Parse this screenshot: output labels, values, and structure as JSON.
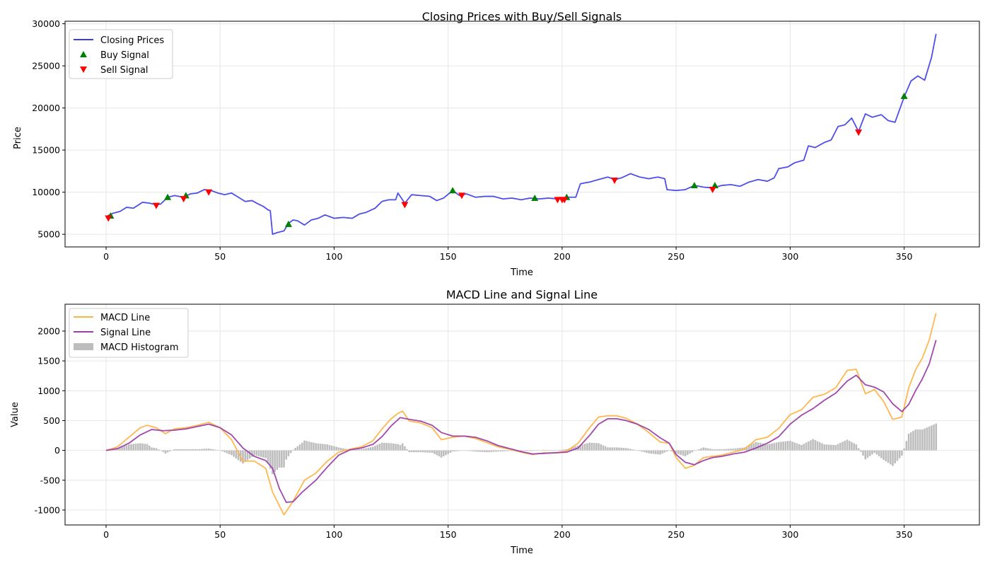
{
  "colors": {
    "price": "#3b3bea",
    "buy": "#008000",
    "sell": "#ff0000",
    "macd": "#ffb347",
    "signal": "#9b3fa8",
    "hist": "#bdbdbd",
    "grid": "#e6e6e6"
  },
  "chart_data": [
    {
      "type": "line",
      "title": "Closing Prices with Buy/Sell Signals",
      "xlabel": "Time",
      "ylabel": "Price",
      "xlim": [
        -18,
        383
      ],
      "ylim": [
        3500,
        30300
      ],
      "xticks": [
        0,
        50,
        100,
        150,
        200,
        250,
        300,
        350
      ],
      "yticks": [
        5000,
        10000,
        15000,
        20000,
        25000,
        30000
      ],
      "grid": true,
      "legend": {
        "position": "top-left",
        "entries": [
          "Closing Prices",
          "Buy Signal",
          "Sell Signal"
        ]
      },
      "price_keypoints": [
        [
          0,
          7100
        ],
        [
          3,
          7500
        ],
        [
          6,
          7700
        ],
        [
          9,
          8200
        ],
        [
          12,
          8100
        ],
        [
          16,
          8800
        ],
        [
          19,
          8700
        ],
        [
          22,
          8500
        ],
        [
          24,
          8600
        ],
        [
          27,
          9400
        ],
        [
          30,
          9600
        ],
        [
          34,
          9400
        ],
        [
          37,
          9800
        ],
        [
          40,
          9900
        ],
        [
          43,
          10300
        ],
        [
          46,
          10200
        ],
        [
          49,
          9900
        ],
        [
          52,
          9700
        ],
        [
          55,
          9900
        ],
        [
          58,
          9400
        ],
        [
          61,
          8900
        ],
        [
          64,
          9000
        ],
        [
          66,
          8700
        ],
        [
          69,
          8300
        ],
        [
          71,
          7900
        ],
        [
          72,
          7800
        ],
        [
          73,
          5000
        ],
        [
          75,
          5200
        ],
        [
          78,
          5400
        ],
        [
          80,
          6300
        ],
        [
          82,
          6700
        ],
        [
          84,
          6600
        ],
        [
          87,
          6100
        ],
        [
          90,
          6700
        ],
        [
          93,
          6900
        ],
        [
          96,
          7300
        ],
        [
          100,
          6900
        ],
        [
          104,
          7000
        ],
        [
          108,
          6900
        ],
        [
          111,
          7400
        ],
        [
          114,
          7600
        ],
        [
          118,
          8100
        ],
        [
          121,
          8900
        ],
        [
          124,
          9100
        ],
        [
          127,
          9100
        ],
        [
          128,
          9900
        ],
        [
          131,
          8700
        ],
        [
          134,
          9700
        ],
        [
          138,
          9600
        ],
        [
          142,
          9500
        ],
        [
          145,
          9000
        ],
        [
          148,
          9300
        ],
        [
          152,
          10200
        ],
        [
          155,
          9600
        ],
        [
          158,
          9800
        ],
        [
          162,
          9400
        ],
        [
          166,
          9500
        ],
        [
          170,
          9500
        ],
        [
          174,
          9200
        ],
        [
          178,
          9300
        ],
        [
          182,
          9100
        ],
        [
          186,
          9300
        ],
        [
          190,
          9200
        ],
        [
          194,
          9300
        ],
        [
          198,
          9200
        ],
        [
          202,
          9400
        ],
        [
          206,
          9400
        ],
        [
          208,
          11000
        ],
        [
          212,
          11200
        ],
        [
          216,
          11500
        ],
        [
          220,
          11800
        ],
        [
          223,
          11500
        ],
        [
          226,
          11700
        ],
        [
          230,
          12200
        ],
        [
          234,
          11800
        ],
        [
          238,
          11600
        ],
        [
          242,
          11800
        ],
        [
          245,
          11600
        ],
        [
          246,
          10300
        ],
        [
          250,
          10200
        ],
        [
          254,
          10300
        ],
        [
          258,
          10800
        ],
        [
          262,
          10600
        ],
        [
          266,
          10500
        ],
        [
          270,
          10800
        ],
        [
          274,
          10900
        ],
        [
          278,
          10700
        ],
        [
          282,
          11200
        ],
        [
          286,
          11500
        ],
        [
          290,
          11300
        ],
        [
          293,
          11700
        ],
        [
          295,
          12800
        ],
        [
          299,
          13000
        ],
        [
          302,
          13500
        ],
        [
          306,
          13800
        ],
        [
          308,
          15500
        ],
        [
          311,
          15300
        ],
        [
          315,
          15900
        ],
        [
          318,
          16200
        ],
        [
          321,
          17800
        ],
        [
          324,
          18000
        ],
        [
          327,
          18800
        ],
        [
          330,
          17200
        ],
        [
          333,
          19300
        ],
        [
          336,
          18900
        ],
        [
          340,
          19200
        ],
        [
          343,
          18500
        ],
        [
          346,
          18300
        ],
        [
          350,
          21300
        ],
        [
          353,
          23200
        ],
        [
          356,
          23800
        ],
        [
          359,
          23300
        ],
        [
          362,
          26000
        ],
        [
          364,
          28800
        ]
      ],
      "buy_signals": [
        [
          2,
          7200
        ],
        [
          27,
          9400
        ],
        [
          35,
          9600
        ],
        [
          80,
          6200
        ],
        [
          152,
          10200
        ],
        [
          188,
          9300
        ],
        [
          202,
          9400
        ],
        [
          258,
          10800
        ],
        [
          267,
          10800
        ],
        [
          350,
          21400
        ]
      ],
      "sell_signals": [
        [
          1,
          6900
        ],
        [
          22,
          8400
        ],
        [
          34,
          9200
        ],
        [
          45,
          10000
        ],
        [
          131,
          8500
        ],
        [
          156,
          9600
        ],
        [
          198,
          9100
        ],
        [
          200,
          9100
        ],
        [
          201,
          9100
        ],
        [
          223,
          11400
        ],
        [
          266,
          10300
        ],
        [
          330,
          17100
        ]
      ]
    },
    {
      "type": "line",
      "title": "MACD Line and Signal Line",
      "xlabel": "Time",
      "ylabel": "Value",
      "xlim": [
        -18,
        383
      ],
      "ylim": [
        -1250,
        2450
      ],
      "xticks": [
        0,
        50,
        100,
        150,
        200,
        250,
        300,
        350
      ],
      "yticks": [
        -1000,
        -500,
        0,
        500,
        1000,
        1500,
        2000
      ],
      "grid": true,
      "legend": {
        "position": "top-left",
        "entries": [
          "MACD Line",
          "Signal Line",
          "MACD Histogram"
        ]
      },
      "macd_keypoints": [
        [
          0,
          0
        ],
        [
          5,
          60
        ],
        [
          10,
          220
        ],
        [
          15,
          380
        ],
        [
          18,
          420
        ],
        [
          22,
          380
        ],
        [
          26,
          280
        ],
        [
          30,
          360
        ],
        [
          35,
          380
        ],
        [
          40,
          420
        ],
        [
          45,
          470
        ],
        [
          50,
          380
        ],
        [
          55,
          180
        ],
        [
          60,
          -180
        ],
        [
          65,
          -180
        ],
        [
          70,
          -300
        ],
        [
          73,
          -700
        ],
        [
          78,
          -1080
        ],
        [
          82,
          -850
        ],
        [
          87,
          -500
        ],
        [
          92,
          -380
        ],
        [
          97,
          -180
        ],
        [
          102,
          -30
        ],
        [
          107,
          20
        ],
        [
          112,
          60
        ],
        [
          117,
          160
        ],
        [
          121,
          360
        ],
        [
          125,
          530
        ],
        [
          128,
          620
        ],
        [
          130,
          660
        ],
        [
          133,
          490
        ],
        [
          138,
          460
        ],
        [
          143,
          380
        ],
        [
          147,
          180
        ],
        [
          152,
          220
        ],
        [
          157,
          240
        ],
        [
          162,
          200
        ],
        [
          167,
          130
        ],
        [
          172,
          60
        ],
        [
          177,
          20
        ],
        [
          182,
          -30
        ],
        [
          187,
          -70
        ],
        [
          192,
          -40
        ],
        [
          197,
          -40
        ],
        [
          202,
          -10
        ],
        [
          207,
          120
        ],
        [
          212,
          380
        ],
        [
          216,
          560
        ],
        [
          220,
          580
        ],
        [
          224,
          580
        ],
        [
          228,
          540
        ],
        [
          233,
          440
        ],
        [
          238,
          300
        ],
        [
          243,
          140
        ],
        [
          247,
          120
        ],
        [
          250,
          -120
        ],
        [
          254,
          -300
        ],
        [
          258,
          -250
        ],
        [
          262,
          -120
        ],
        [
          266,
          -100
        ],
        [
          270,
          -80
        ],
        [
          275,
          -30
        ],
        [
          280,
          20
        ],
        [
          285,
          180
        ],
        [
          290,
          220
        ],
        [
          295,
          370
        ],
        [
          300,
          600
        ],
        [
          305,
          680
        ],
        [
          310,
          890
        ],
        [
          315,
          940
        ],
        [
          320,
          1050
        ],
        [
          325,
          1340
        ],
        [
          329,
          1360
        ],
        [
          333,
          950
        ],
        [
          337,
          1020
        ],
        [
          341,
          820
        ],
        [
          345,
          520
        ],
        [
          349,
          560
        ],
        [
          352,
          1050
        ],
        [
          355,
          1350
        ],
        [
          358,
          1550
        ],
        [
          361,
          1850
        ],
        [
          364,
          2300
        ]
      ],
      "signal_keypoints": [
        [
          0,
          0
        ],
        [
          5,
          30
        ],
        [
          10,
          120
        ],
        [
          15,
          260
        ],
        [
          20,
          350
        ],
        [
          25,
          330
        ],
        [
          30,
          340
        ],
        [
          35,
          360
        ],
        [
          40,
          400
        ],
        [
          45,
          440
        ],
        [
          50,
          380
        ],
        [
          55,
          260
        ],
        [
          60,
          40
        ],
        [
          65,
          -100
        ],
        [
          70,
          -170
        ],
        [
          73,
          -300
        ],
        [
          76,
          -640
        ],
        [
          79,
          -870
        ],
        [
          82,
          -860
        ],
        [
          86,
          -700
        ],
        [
          92,
          -500
        ],
        [
          97,
          -280
        ],
        [
          102,
          -80
        ],
        [
          107,
          10
        ],
        [
          112,
          40
        ],
        [
          117,
          100
        ],
        [
          121,
          230
        ],
        [
          125,
          410
        ],
        [
          129,
          550
        ],
        [
          133,
          520
        ],
        [
          138,
          490
        ],
        [
          143,
          420
        ],
        [
          147,
          300
        ],
        [
          152,
          240
        ],
        [
          157,
          240
        ],
        [
          162,
          220
        ],
        [
          167,
          160
        ],
        [
          172,
          80
        ],
        [
          177,
          30
        ],
        [
          182,
          -20
        ],
        [
          187,
          -60
        ],
        [
          192,
          -50
        ],
        [
          197,
          -40
        ],
        [
          202,
          -30
        ],
        [
          207,
          40
        ],
        [
          212,
          250
        ],
        [
          216,
          440
        ],
        [
          220,
          530
        ],
        [
          224,
          530
        ],
        [
          228,
          500
        ],
        [
          233,
          440
        ],
        [
          238,
          350
        ],
        [
          243,
          210
        ],
        [
          247,
          120
        ],
        [
          250,
          -70
        ],
        [
          254,
          -200
        ],
        [
          258,
          -240
        ],
        [
          262,
          -170
        ],
        [
          266,
          -120
        ],
        [
          270,
          -100
        ],
        [
          275,
          -60
        ],
        [
          280,
          -30
        ],
        [
          285,
          40
        ],
        [
          290,
          120
        ],
        [
          295,
          230
        ],
        [
          300,
          440
        ],
        [
          305,
          590
        ],
        [
          310,
          700
        ],
        [
          315,
          840
        ],
        [
          320,
          960
        ],
        [
          325,
          1160
        ],
        [
          329,
          1260
        ],
        [
          333,
          1100
        ],
        [
          337,
          1060
        ],
        [
          341,
          980
        ],
        [
          345,
          780
        ],
        [
          349,
          650
        ],
        [
          352,
          770
        ],
        [
          355,
          1000
        ],
        [
          358,
          1200
        ],
        [
          361,
          1450
        ],
        [
          364,
          1850
        ]
      ]
    }
  ]
}
